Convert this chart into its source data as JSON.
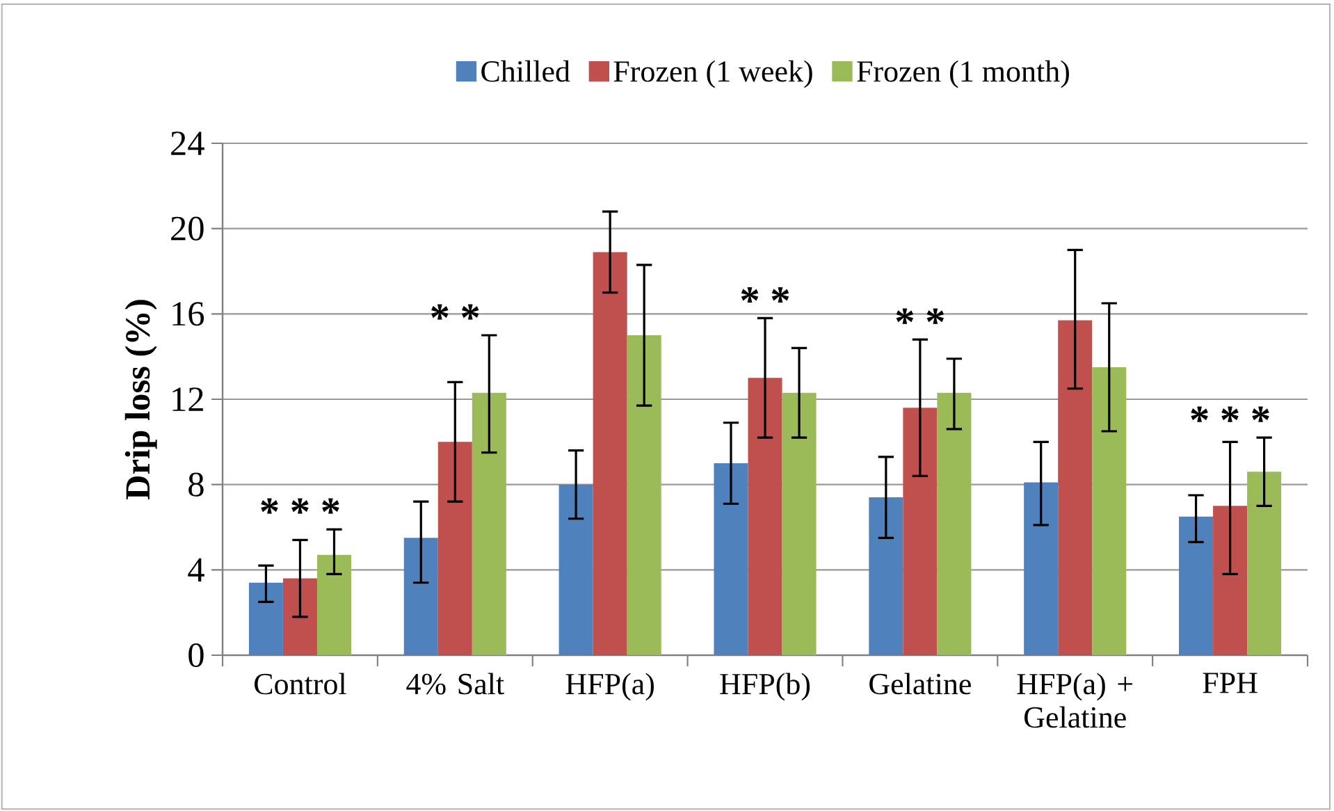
{
  "chart_data": {
    "type": "bar",
    "ylabel": "Drip loss (%)",
    "categories": [
      "Control",
      "4% Salt",
      "HFP(a)",
      "HFP(b)",
      "Gelatine",
      "HFP(a) + Gelatine",
      "FPH"
    ],
    "series": [
      {
        "name": "Chilled",
        "color": "#4f81bd",
        "values": [
          3.4,
          5.5,
          8.0,
          9.0,
          7.4,
          8.1,
          6.5
        ],
        "errors": [
          [
            2.5,
            4.2
          ],
          [
            3.4,
            7.2
          ],
          [
            6.4,
            9.6
          ],
          [
            7.1,
            10.9
          ],
          [
            5.5,
            9.3
          ],
          [
            6.1,
            10.0
          ],
          [
            5.3,
            7.5
          ]
        ]
      },
      {
        "name": "Frozen (1 week)",
        "color": "#c0504d",
        "values": [
          3.6,
          10.0,
          18.9,
          13.0,
          11.6,
          15.7,
          7.0
        ],
        "errors": [
          [
            1.8,
            5.4
          ],
          [
            7.2,
            12.8
          ],
          [
            17.0,
            20.8
          ],
          [
            10.2,
            15.8
          ],
          [
            8.4,
            14.8
          ],
          [
            12.5,
            19.0
          ],
          [
            3.8,
            10.0
          ]
        ]
      },
      {
        "name": "Frozen (1 month)",
        "color": "#9bbb59",
        "values": [
          4.7,
          12.3,
          15.0,
          12.3,
          12.3,
          13.5,
          8.6
        ],
        "errors": [
          [
            3.8,
            5.9
          ],
          [
            9.5,
            15.0
          ],
          [
            11.7,
            18.3
          ],
          [
            10.2,
            14.4
          ],
          [
            10.6,
            13.9
          ],
          [
            10.5,
            16.5
          ],
          [
            7.0,
            10.2
          ]
        ]
      }
    ],
    "ylim": [
      0,
      24
    ],
    "yticks": [
      0,
      4,
      8,
      12,
      16,
      20,
      24
    ],
    "grid": "y",
    "legend": "top",
    "annotations": [
      {
        "text": "* * *",
        "x": "Control",
        "y": 5.4
      },
      {
        "text": "* *",
        "x": "4% Salt",
        "y": 12.8
      },
      {
        "text": "* *",
        "x": "HFP(b)",
        "y": 15.8
      },
      {
        "text": "* *",
        "x": "Gelatine",
        "y": 14.8
      },
      {
        "text": "* * *",
        "x": "FPH",
        "y": 10.0
      }
    ]
  }
}
